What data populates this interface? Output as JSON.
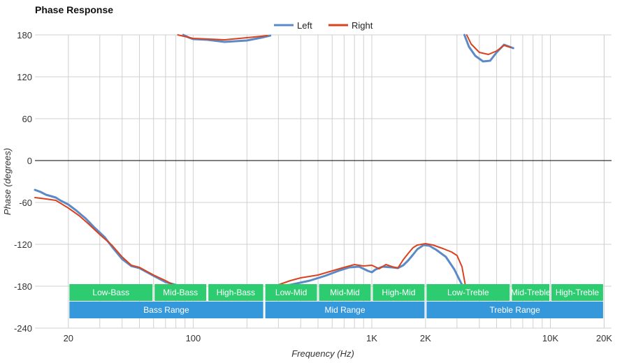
{
  "chart_data": {
    "type": "line",
    "title": "Phase Response",
    "xlabel": "Frequency (Hz)",
    "ylabel": "Phase (degrees)",
    "x_scale": "log",
    "xlim": [
      13,
      22000
    ],
    "ylim": [
      -240,
      180
    ],
    "y_ticks": [
      180,
      120,
      60,
      0,
      -60,
      -120,
      -180,
      -240
    ],
    "x_ticks": [
      {
        "value": 20,
        "label": "20"
      },
      {
        "value": 100,
        "label": "100"
      },
      {
        "value": 1000,
        "label": "1K"
      },
      {
        "value": 2000,
        "label": "2K"
      },
      {
        "value": 10000,
        "label": "10K"
      },
      {
        "value": 20000,
        "label": "20K"
      }
    ],
    "grid": true,
    "legend_position": "top-center",
    "series": [
      {
        "name": "Left",
        "color": "#5b8ac6",
        "points": [
          [
            13,
            -42
          ],
          [
            14,
            -45
          ],
          [
            15,
            -49
          ],
          [
            16,
            -51
          ],
          [
            17,
            -53
          ],
          [
            18,
            -57
          ],
          [
            20,
            -63
          ],
          [
            22,
            -71
          ],
          [
            25,
            -83
          ],
          [
            28,
            -96
          ],
          [
            32,
            -110
          ],
          [
            35,
            -123
          ],
          [
            40,
            -141
          ],
          [
            45,
            -151
          ],
          [
            50,
            -154
          ],
          [
            60,
            -165
          ],
          [
            70,
            -174
          ],
          [
            85,
            -180
          ],
          [
            null,
            null
          ],
          [
            88,
            180
          ],
          [
            95,
            176
          ],
          [
            100,
            174
          ],
          [
            120,
            173
          ],
          [
            150,
            170
          ],
          [
            200,
            172
          ],
          [
            240,
            176
          ],
          [
            270,
            179
          ],
          [
            null,
            null
          ],
          [
            290,
            -180
          ],
          [
            350,
            -178
          ],
          [
            450,
            -172
          ],
          [
            550,
            -165
          ],
          [
            650,
            -158
          ],
          [
            750,
            -153
          ],
          [
            850,
            -152
          ],
          [
            950,
            -158
          ],
          [
            1000,
            -160
          ],
          [
            1050,
            -156
          ],
          [
            1150,
            -152
          ],
          [
            1300,
            -153
          ],
          [
            1400,
            -154
          ],
          [
            1500,
            -150
          ],
          [
            1600,
            -143
          ],
          [
            1700,
            -135
          ],
          [
            1800,
            -127
          ],
          [
            1950,
            -121
          ],
          [
            2100,
            -122
          ],
          [
            2300,
            -128
          ],
          [
            2600,
            -138
          ],
          [
            2900,
            -156
          ],
          [
            3200,
            -178
          ],
          [
            null,
            null
          ],
          [
            3300,
            180
          ],
          [
            3500,
            163
          ],
          [
            3800,
            150
          ],
          [
            4200,
            142
          ],
          [
            4600,
            143
          ],
          [
            5000,
            155
          ],
          [
            5500,
            166
          ],
          [
            6200,
            161
          ]
        ]
      },
      {
        "name": "Right",
        "color": "#d9421e",
        "points": [
          [
            13,
            -53
          ],
          [
            15,
            -55
          ],
          [
            17,
            -57
          ],
          [
            20,
            -68
          ],
          [
            23,
            -79
          ],
          [
            26,
            -91
          ],
          [
            30,
            -106
          ],
          [
            35,
            -121
          ],
          [
            40,
            -138
          ],
          [
            45,
            -150
          ],
          [
            50,
            -153
          ],
          [
            60,
            -164
          ],
          [
            70,
            -172
          ],
          [
            80,
            -180
          ],
          [
            null,
            null
          ],
          [
            82,
            180
          ],
          [
            100,
            175
          ],
          [
            150,
            173
          ],
          [
            200,
            176
          ],
          [
            240,
            178
          ],
          [
            260,
            179
          ],
          [
            null,
            null
          ],
          [
            265,
            -180
          ],
          [
            300,
            -178
          ],
          [
            350,
            -172
          ],
          [
            400,
            -168
          ],
          [
            500,
            -164
          ],
          [
            600,
            -158
          ],
          [
            700,
            -153
          ],
          [
            800,
            -149
          ],
          [
            900,
            -151
          ],
          [
            1000,
            -150
          ],
          [
            1100,
            -155
          ],
          [
            1200,
            -149
          ],
          [
            1300,
            -152
          ],
          [
            1400,
            -154
          ],
          [
            1500,
            -142
          ],
          [
            1600,
            -133
          ],
          [
            1700,
            -125
          ],
          [
            1800,
            -121
          ],
          [
            2000,
            -119
          ],
          [
            2200,
            -121
          ],
          [
            2500,
            -126
          ],
          [
            2800,
            -131
          ],
          [
            3000,
            -136
          ],
          [
            3200,
            -152
          ],
          [
            3350,
            -180
          ],
          [
            null,
            null
          ],
          [
            3400,
            180
          ],
          [
            3600,
            167
          ],
          [
            4000,
            155
          ],
          [
            4500,
            152
          ],
          [
            5000,
            157
          ],
          [
            5500,
            165
          ],
          [
            6000,
            162
          ]
        ]
      }
    ],
    "band_ranges": [
      {
        "label": "Low-Bass",
        "from": 20,
        "to": 60
      },
      {
        "label": "Mid-Bass",
        "from": 60,
        "to": 120
      },
      {
        "label": "High-Bass",
        "from": 120,
        "to": 250
      },
      {
        "label": "Low-Mid",
        "from": 250,
        "to": 500
      },
      {
        "label": "Mid-Mid",
        "from": 500,
        "to": 1000
      },
      {
        "label": "High-Mid",
        "from": 1000,
        "to": 2000
      },
      {
        "label": "Low-Treble",
        "from": 2000,
        "to": 6000
      },
      {
        "label": "Mid-Treble",
        "from": 6000,
        "to": 10000
      },
      {
        "label": "High-Treble",
        "from": 10000,
        "to": 20000
      }
    ],
    "range_bands": [
      {
        "label": "Bass Range",
        "from": 20,
        "to": 250
      },
      {
        "label": "Mid Range",
        "from": 250,
        "to": 2000
      },
      {
        "label": "Treble Range",
        "from": 2000,
        "to": 20000
      }
    ],
    "colors": {
      "band": "#2ecc71",
      "range": "#3498db",
      "grid": "#d0d0d0",
      "zero_line": "#000000"
    }
  }
}
